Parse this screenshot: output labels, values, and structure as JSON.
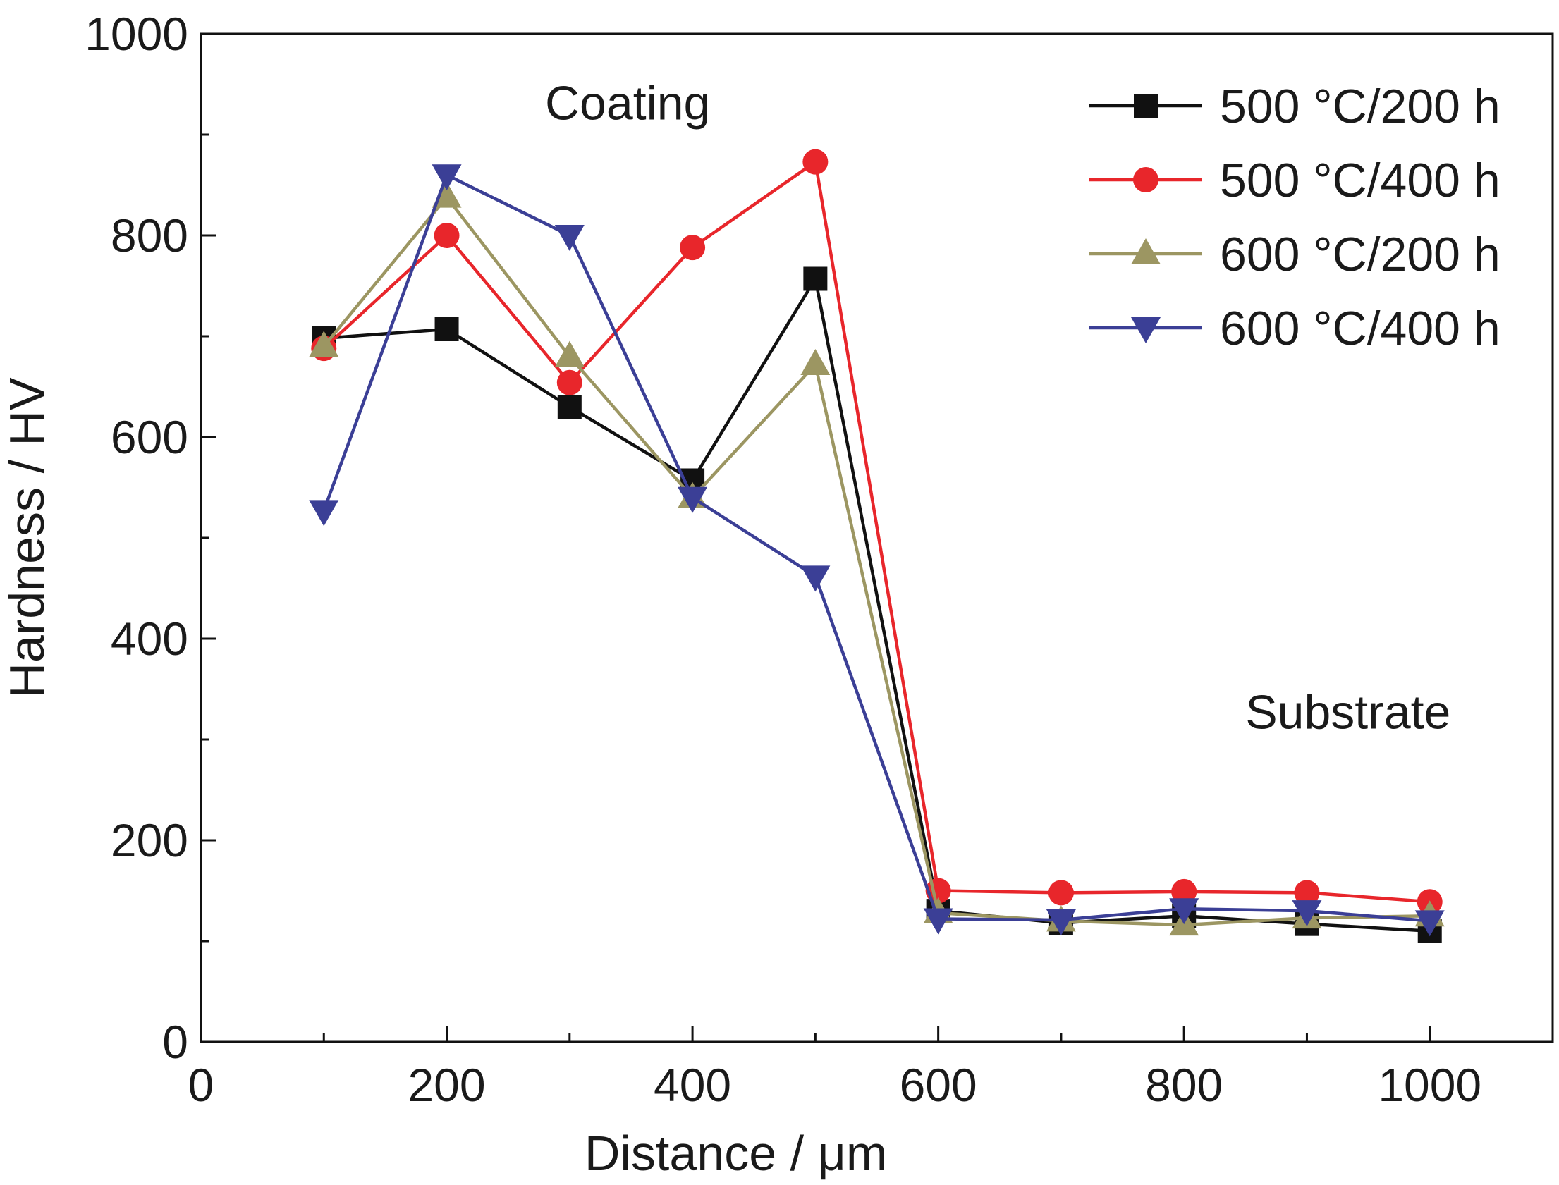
{
  "chart_data": {
    "type": "line",
    "xlabel": "Distance / μm",
    "ylabel": "Hardness / HV",
    "xlim": [
      0,
      1100
    ],
    "ylim": [
      0,
      1000
    ],
    "x_ticks": [
      0,
      200,
      400,
      600,
      800,
      1000
    ],
    "y_ticks": [
      0,
      200,
      400,
      600,
      800,
      1000
    ],
    "x_minor_step": 100,
    "y_minor_step": 100,
    "grid": false,
    "legend_position": "top-right",
    "x": [
      100,
      200,
      300,
      400,
      500,
      600,
      700,
      800,
      900,
      1000
    ],
    "series": [
      {
        "name": "500 °C/200 h",
        "marker": "square",
        "color": "#111111",
        "values": [
          698,
          707,
          630,
          557,
          757,
          130,
          118,
          125,
          117,
          110
        ]
      },
      {
        "name": "500 °C/400 h",
        "marker": "circle",
        "color": "#e8262b",
        "values": [
          688,
          800,
          654,
          788,
          873,
          150,
          148,
          149,
          148,
          139
        ]
      },
      {
        "name": "600 °C/200 h",
        "marker": "triangle-up",
        "color": "#9c9662",
        "values": [
          690,
          838,
          680,
          540,
          672,
          128,
          120,
          116,
          123,
          125
        ]
      },
      {
        "name": "600 °C/400 h",
        "marker": "triangle-down",
        "color": "#3b3f96",
        "values": [
          527,
          860,
          800,
          540,
          462,
          122,
          121,
          132,
          130,
          120
        ]
      }
    ],
    "annotations": [
      {
        "text": "Coating",
        "x": 280,
        "y": 915
      },
      {
        "text": "Substrate",
        "x": 850,
        "y": 311
      }
    ]
  }
}
